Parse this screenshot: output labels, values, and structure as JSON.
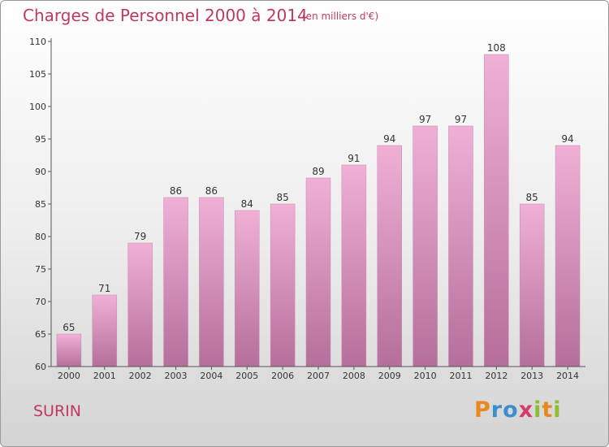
{
  "title": "Charges de Personnel 2000 à 2014",
  "subtitle": "(en milliers d'€)",
  "commune": "SURIN",
  "logo": {
    "letters": [
      "P",
      "r",
      "o",
      "x",
      "i",
      "t",
      "i"
    ],
    "colors": [
      "#e8891e",
      "#3b8fd0",
      "#3b8fd0",
      "#d63a6a",
      "#8cbf2f",
      "#e8891e",
      "#8cbf2f"
    ]
  },
  "colors": {
    "title": "#c0395d",
    "bar_top": "#f0b0d6",
    "bar_bottom": "#b56f9a"
  },
  "chart_data": {
    "type": "bar",
    "categories": [
      "2000",
      "2001",
      "2002",
      "2003",
      "2004",
      "2005",
      "2006",
      "2007",
      "2008",
      "2009",
      "2010",
      "2011",
      "2012",
      "2013",
      "2014"
    ],
    "values": [
      65,
      71,
      79,
      86,
      86,
      84,
      85,
      89,
      91,
      94,
      97,
      97,
      108,
      85,
      94
    ],
    "ylim": [
      60,
      110
    ],
    "yticks": [
      60,
      65,
      70,
      75,
      80,
      85,
      90,
      95,
      100,
      105,
      110
    ],
    "grid": false,
    "legend": "none"
  }
}
